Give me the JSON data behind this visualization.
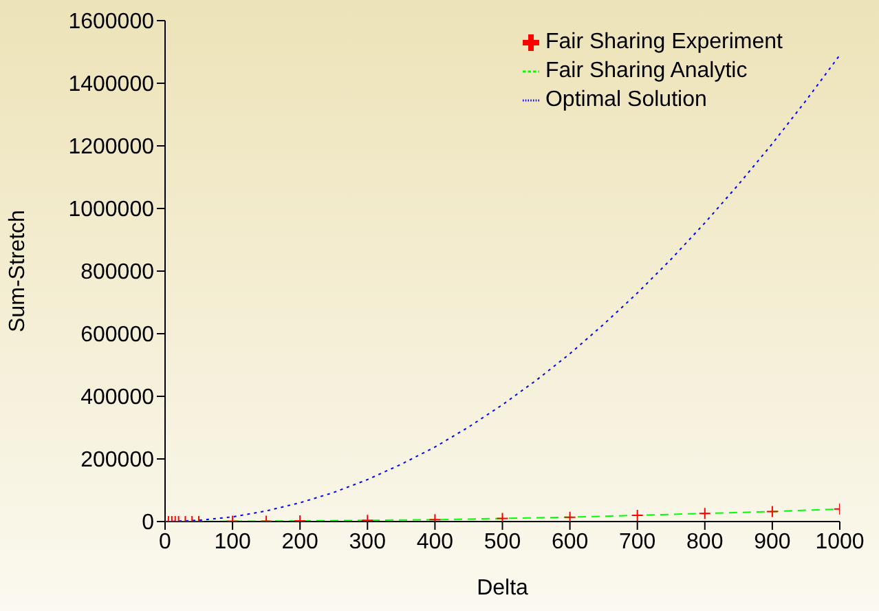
{
  "chart_data": {
    "type": "line",
    "xlabel": "Delta",
    "ylabel": "Sum-Stretch",
    "xlim": [
      0,
      1000
    ],
    "xticks": [
      0,
      100,
      200,
      300,
      400,
      500,
      600,
      700,
      800,
      900,
      1000
    ],
    "ylim": [
      0,
      1600000
    ],
    "yticks": [
      0,
      200000,
      400000,
      600000,
      800000,
      1000000,
      1200000,
      1400000,
      1600000
    ],
    "grid": false,
    "legend": "top right",
    "series": [
      {
        "name": "Fair Sharing Experiment",
        "type": "scatter",
        "marker": "cross",
        "color": "#ff0000",
        "x": [
          5,
          10,
          15,
          20,
          30,
          40,
          50,
          100,
          150,
          200,
          300,
          400,
          500,
          600,
          700,
          800,
          900,
          1000
        ],
        "values": [
          0,
          0,
          0,
          0,
          0,
          0,
          0,
          1000,
          1000,
          2000,
          4000,
          6000,
          10000,
          14000,
          20000,
          26000,
          32000,
          40000
        ]
      },
      {
        "name": "Fair Sharing Analytic",
        "marker": "none",
        "line_style": "dashed",
        "color": "#00ff00",
        "x": [
          0,
          100,
          200,
          300,
          400,
          500,
          600,
          700,
          800,
          900,
          1000
        ],
        "values": [
          0,
          1000,
          2000,
          4000,
          6000,
          10000,
          14000,
          20000,
          26000,
          32000,
          40000
        ]
      },
      {
        "name": "Optimal Solution",
        "marker": "none",
        "line_style": "dotted",
        "color": "#0000ff",
        "x": [
          0,
          50,
          100,
          150,
          200,
          250,
          300,
          350,
          400,
          450,
          500,
          550,
          600,
          650,
          700,
          750,
          800,
          850,
          900,
          950,
          1000
        ],
        "values": [
          0,
          4000,
          15000,
          34000,
          60000,
          93000,
          134000,
          183000,
          238000,
          302000,
          373000,
          451000,
          536000,
          630000,
          730000,
          838000,
          954000,
          1077000,
          1207000,
          1345000,
          1490000
        ]
      }
    ]
  }
}
